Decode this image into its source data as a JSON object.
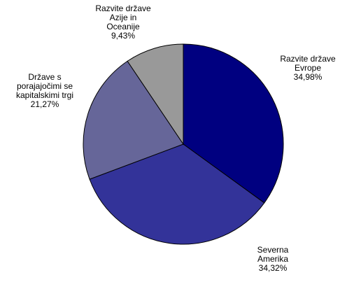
{
  "chart_data": {
    "type": "pie",
    "categories": [
      [
        "Razvite države",
        "Evrope"
      ],
      [
        "Severna",
        "Amerika"
      ],
      [
        "Države s",
        "porajajočimi se",
        "kapitalskimi trgi"
      ],
      [
        "Razvite države",
        "Azije in",
        "Oceanije"
      ]
    ],
    "values": [
      34.98,
      34.32,
      21.27,
      9.43
    ],
    "value_labels": [
      "34,98%",
      "34,32%",
      "21,27%",
      "9,43%"
    ],
    "colors": [
      "#000080",
      "#333399",
      "#666699",
      "#999999"
    ]
  }
}
